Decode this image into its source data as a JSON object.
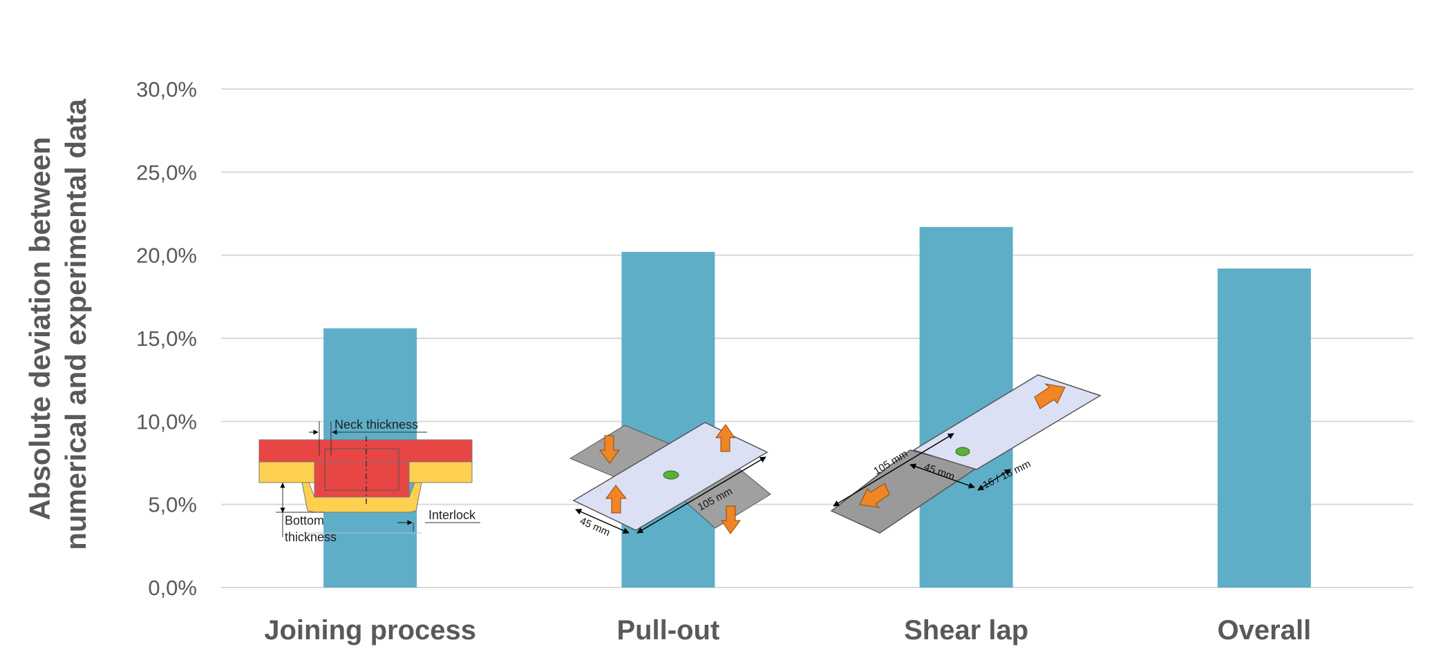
{
  "chart_data": {
    "type": "bar",
    "title": "",
    "ylabel_lines": [
      "Absolute deviation between",
      "numerical and experimental data"
    ],
    "xlabel": "",
    "categories": [
      "Joining process",
      "Pull-out",
      "Shear lap",
      "Overall"
    ],
    "values": [
      15.6,
      20.2,
      21.7,
      19.2
    ],
    "ylim": [
      0,
      30
    ],
    "yticks": [
      "0,0%",
      "5,0%",
      "10,0%",
      "15,0%",
      "20,0%",
      "25,0%",
      "30,0%"
    ],
    "grid": true,
    "legend": "none",
    "colors": {
      "bar": "#5eaec8",
      "grid": "#d9d9d9",
      "text": "#595959"
    }
  },
  "annotations": {
    "joint": {
      "neck": "Neck thickness",
      "bottom_1": "Bottom",
      "bottom_2": "thickness",
      "interlock": "Interlock"
    },
    "pullout": {
      "width": "45 mm",
      "length": "105 mm"
    },
    "shear": {
      "length": "105 mm",
      "width": "45 mm",
      "overlap": "16 / 18 mm"
    }
  }
}
